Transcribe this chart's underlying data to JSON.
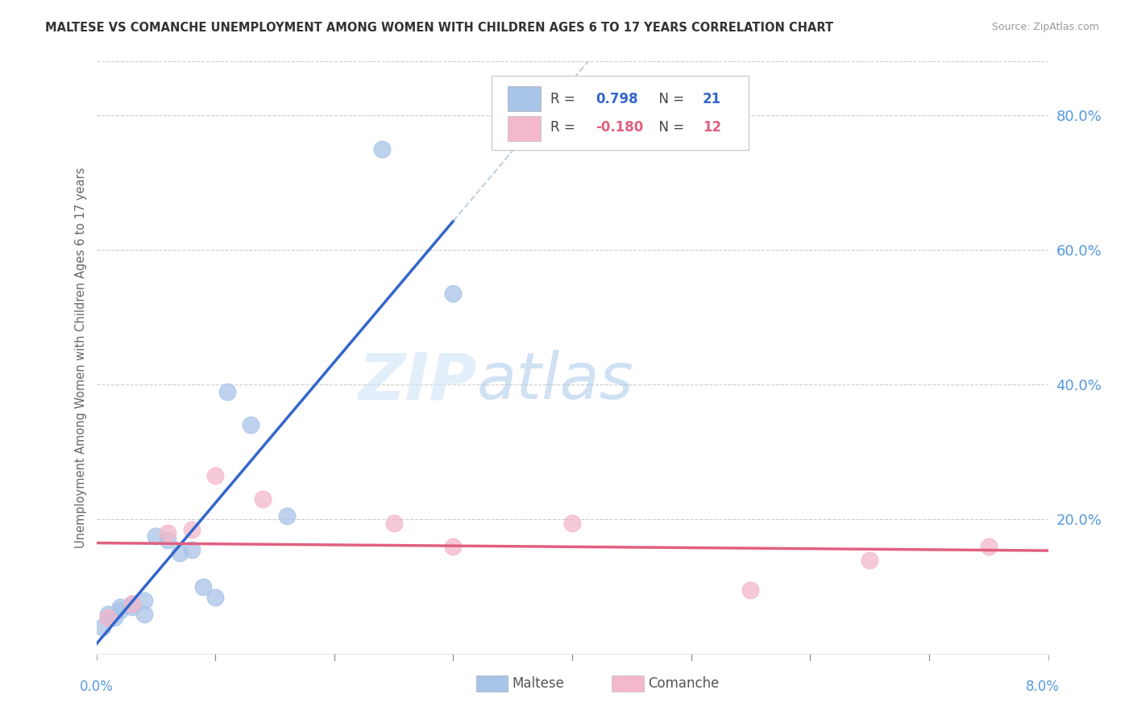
{
  "title": "MALTESE VS COMANCHE UNEMPLOYMENT AMONG WOMEN WITH CHILDREN AGES 6 TO 17 YEARS CORRELATION CHART",
  "source": "Source: ZipAtlas.com",
  "ylabel": "Unemployment Among Women with Children Ages 6 to 17 years",
  "xlim": [
    0.0,
    0.08
  ],
  "ylim": [
    0.0,
    0.88
  ],
  "xtick_left": "0.0%",
  "xtick_right": "8.0%",
  "ytick_labels_right": [
    "20.0%",
    "40.0%",
    "60.0%",
    "80.0%"
  ],
  "yticks_right": [
    0.2,
    0.4,
    0.6,
    0.8
  ],
  "watermark_zip": "ZIP",
  "watermark_atlas": "atlas",
  "maltese_color": "#a8c4e8",
  "comanche_color": "#f4b8cb",
  "maltese_line_color": "#3366cc",
  "comanche_line_color": "#e06080",
  "maltese_x": [
    0.0005,
    0.001,
    0.001,
    0.0015,
    0.002,
    0.002,
    0.003,
    0.003,
    0.004,
    0.004,
    0.005,
    0.006,
    0.007,
    0.008,
    0.009,
    0.01,
    0.011,
    0.013,
    0.016,
    0.024,
    0.03
  ],
  "maltese_y": [
    0.04,
    0.055,
    0.06,
    0.055,
    0.065,
    0.07,
    0.07,
    0.075,
    0.06,
    0.08,
    0.175,
    0.17,
    0.15,
    0.155,
    0.1,
    0.085,
    0.39,
    0.34,
    0.205,
    0.75,
    0.535
  ],
  "comanche_x": [
    0.001,
    0.003,
    0.006,
    0.008,
    0.01,
    0.014,
    0.025,
    0.03,
    0.04,
    0.055,
    0.065,
    0.075
  ],
  "comanche_y": [
    0.055,
    0.075,
    0.18,
    0.185,
    0.265,
    0.23,
    0.195,
    0.16,
    0.195,
    0.095,
    0.14,
    0.16
  ],
  "background_color": "#ffffff",
  "grid_color": "#cccccc",
  "tick_color": "#5599dd",
  "legend_maltese_r": "0.798",
  "legend_comanche_r": "-0.180",
  "legend_maltese_n": "21",
  "legend_comanche_n": "12"
}
